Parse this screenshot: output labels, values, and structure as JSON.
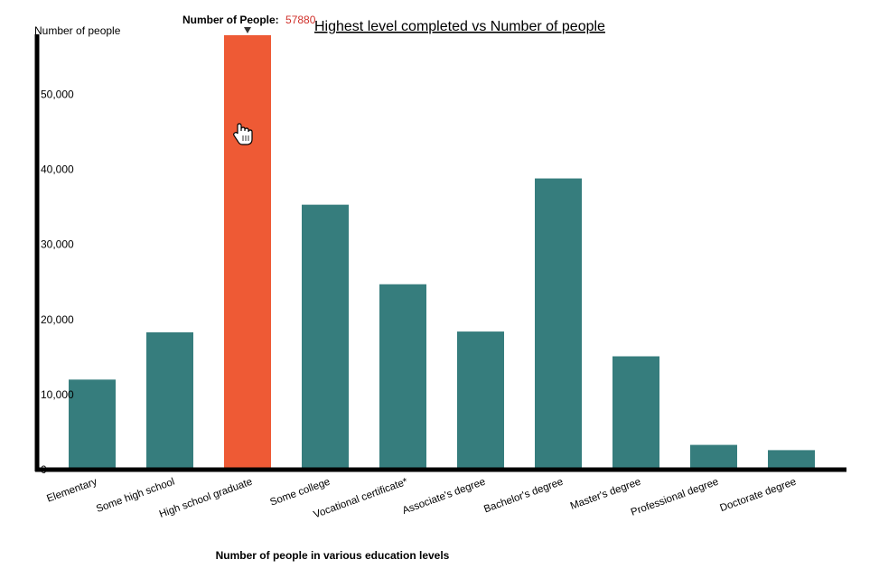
{
  "chart_data": {
    "type": "bar",
    "title": "Highest level completed vs Number of people",
    "xlabel": "Number of people in various education levels",
    "ylabel": "Number of people",
    "categories": [
      "Elementary",
      "Some high school",
      "High school graduate",
      "Some college",
      "Vocational certificate*",
      "Associate's degree",
      "Bachelor's degree",
      "Master's degree",
      "Professional degree",
      "Doctorate degree"
    ],
    "values": [
      12000,
      18300,
      57880,
      35300,
      24700,
      18400,
      38800,
      15100,
      3300,
      2600
    ],
    "ylim": [
      0,
      57880
    ],
    "yticks": [
      0,
      10000,
      20000,
      30000,
      40000,
      50000
    ],
    "ytick_labels": [
      "0",
      "10,000",
      "20,000",
      "30,000",
      "40,000",
      "50,000"
    ],
    "grid": false,
    "bar_color": "#367d7d",
    "highlight_color": "#ee5a35",
    "highlight_index": 2
  },
  "tooltip": {
    "label": "Number of People:",
    "value": "57880",
    "value_color": "#d0302a"
  }
}
